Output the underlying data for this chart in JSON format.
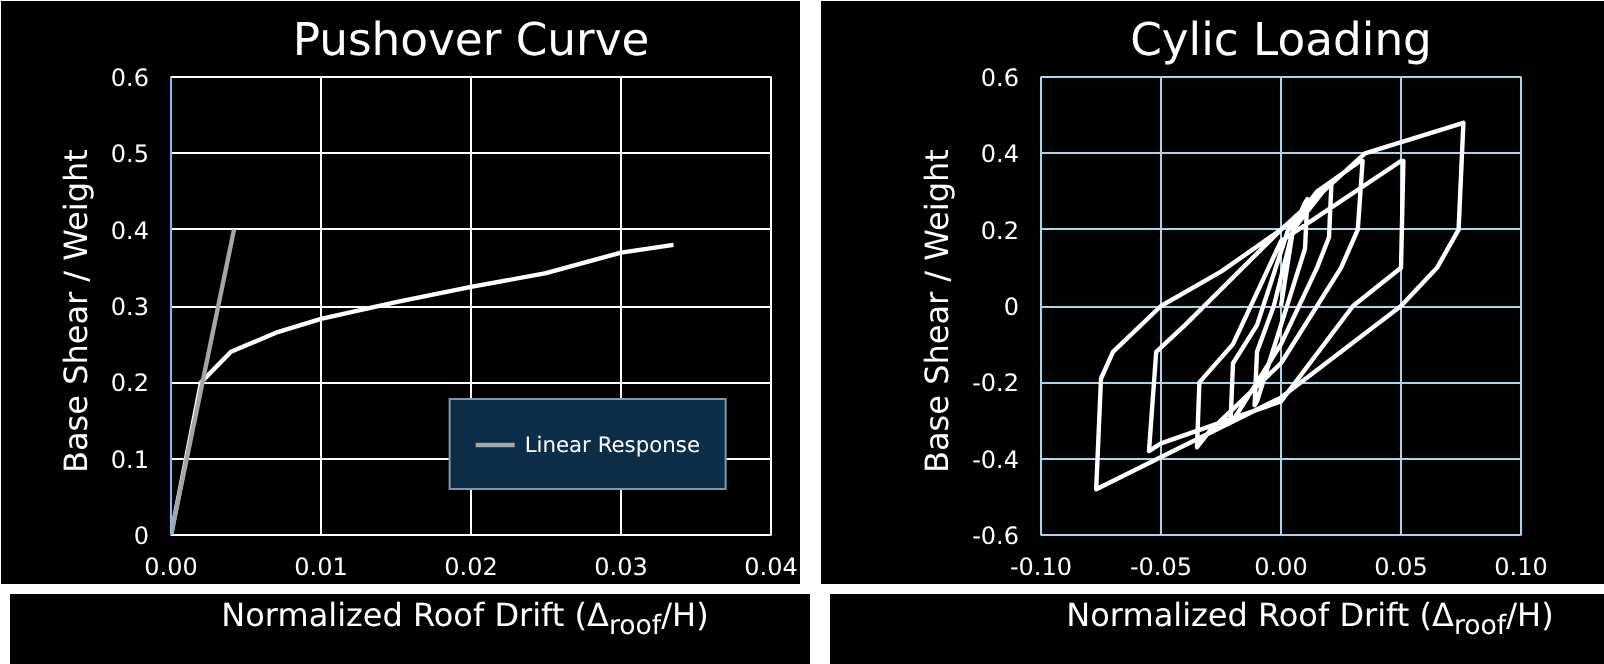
{
  "chart_data": [
    {
      "type": "line",
      "title": "Pushover Curve",
      "xlabel": "Normalized Roof Drift (Δ$_{roof}$/H)",
      "ylabel": "Base  Shear / Weight",
      "xlim": [
        0,
        0.04
      ],
      "ylim": [
        0,
        0.6
      ],
      "xticks": [
        {
          "value": 0,
          "label": "0.00"
        },
        {
          "value": 0.01,
          "label": "0.01"
        },
        {
          "value": 0.02,
          "label": "0.02"
        },
        {
          "value": 0.03,
          "label": "0.03"
        },
        {
          "value": 0.04,
          "label": "0.04"
        }
      ],
      "yticks": [
        0,
        0.1,
        0.2,
        0.3,
        0.4,
        0.5,
        0.6
      ],
      "grid": true,
      "legend": "bottom right",
      "series": [
        {
          "color": "#ffffff",
          "x": [
            0,
            0.002,
            0.004,
            0.007,
            0.01,
            0.015,
            0.02,
            0.025,
            0.03,
            0.0335
          ],
          "values": [
            0,
            0.2,
            0.24,
            0.265,
            0.283,
            0.305,
            0.325,
            0.343,
            0.37,
            0.38
          ]
        },
        {
          "name": "Linear Response",
          "color": "#a6a6a6",
          "x": [
            0,
            0.0042
          ],
          "values": [
            0,
            0.4
          ]
        }
      ]
    },
    {
      "type": "line",
      "title": "Cylic Loading",
      "xlabel": "Normalized Roof Drift (Δ$_{roof}$/H)",
      "ylabel": "Base  Shear / Weight",
      "xlim": [
        -0.1,
        0.1
      ],
      "ylim": [
        -0.6,
        0.6
      ],
      "xticks": [
        {
          "value": -0.1,
          "label": "-0.10"
        },
        {
          "value": -0.05,
          "label": "-0.05"
        },
        {
          "value": 0,
          "label": "0.00"
        },
        {
          "value": 0.05,
          "label": "0.05"
        },
        {
          "value": 0.1,
          "label": "0.10"
        }
      ],
      "yticks": [
        -0.6,
        -0.4,
        -0.2,
        0,
        0.2,
        0.4,
        0.6
      ],
      "grid": true,
      "series": [
        {
          "color": "#ffffff",
          "x": [
            0,
            0.005,
            0.01,
            0.011,
            0.01,
            0.005,
            -0.005,
            -0.01,
            -0.011,
            -0.01,
            -0.003,
            0.005,
            0.02,
            0.021,
            0.02,
            0.015,
            0,
            -0.015,
            -0.02,
            -0.021,
            -0.02,
            -0.01,
            0.003,
            0.015,
            0.033,
            0.034,
            0.032,
            0.025,
            0,
            -0.03,
            -0.035,
            -0.034,
            -0.02,
            0,
            0.05,
            0.051,
            0.05,
            0.03,
            0,
            -0.05,
            -0.055,
            -0.052,
            -0.04,
            0,
            0.035,
            0.076,
            0.074,
            0.065,
            0.05,
            0,
            -0.077,
            -0.075,
            -0.07,
            -0.05,
            -0.025,
            0
          ],
          "values": [
            0,
            0.2,
            0.27,
            0.28,
            0.15,
            0.05,
            -0.15,
            -0.25,
            -0.26,
            -0.12,
            0,
            0.2,
            0.32,
            0.32,
            0.18,
            0.1,
            -0.1,
            -0.25,
            -0.3,
            -0.3,
            -0.15,
            -0.05,
            0.2,
            0.3,
            0.38,
            0.38,
            0.2,
            0.1,
            -0.15,
            -0.33,
            -0.37,
            -0.2,
            -0.1,
            0.17,
            0.38,
            0.38,
            0.1,
            0,
            -0.25,
            -0.36,
            -0.38,
            -0.12,
            -0.05,
            0.2,
            0.4,
            0.48,
            0.2,
            0.1,
            0,
            -0.24,
            -0.48,
            -0.19,
            -0.12,
            0,
            0.09,
            0.2
          ]
        }
      ]
    }
  ]
}
